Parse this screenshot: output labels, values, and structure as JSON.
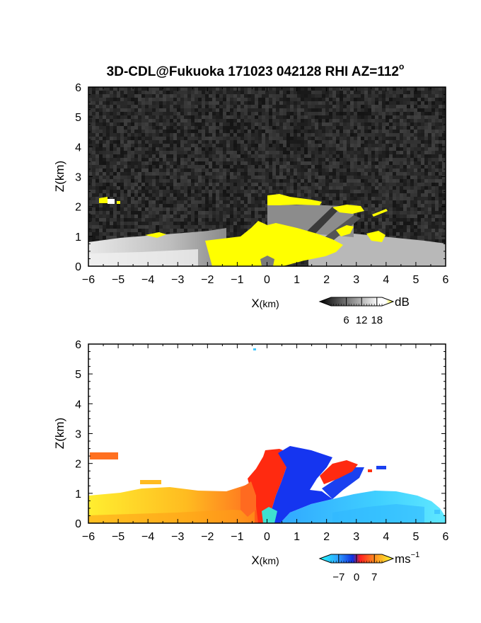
{
  "title": "3D-CDL@Fukuoka 171023 042128 RHI AZ=112",
  "title_sup": "o",
  "chart_data": [
    {
      "type": "heatmap",
      "panel": "backscatter",
      "xlabel_main": "X",
      "xlabel_unit": "(km)",
      "ylabel": "Z(km)",
      "xlim": [
        -6,
        6
      ],
      "ylim": [
        0,
        6
      ],
      "x_ticks": [
        "-6",
        "-5",
        "-4",
        "-3",
        "-2",
        "-1",
        "0",
        "1",
        "2",
        "3",
        "4",
        "5",
        "6"
      ],
      "y_ticks": [
        "0",
        "1",
        "2",
        "3",
        "4",
        "5",
        "6"
      ],
      "background": "noise (dark gray)",
      "colorbar": {
        "label": "dB",
        "ticks": [
          "6",
          "12",
          "18"
        ],
        "tick_values": [
          6,
          12,
          18
        ],
        "range": [
          0,
          20
        ],
        "colors": [
          "#000000",
          "#ffffff",
          "#ffff00"
        ]
      }
    },
    {
      "type": "heatmap",
      "panel": "doppler_velocity",
      "xlabel_main": "X",
      "xlabel_unit": "(km)",
      "ylabel": "Z(km)",
      "xlim": [
        -6,
        6
      ],
      "ylim": [
        0,
        6
      ],
      "x_ticks": [
        "-6",
        "-5",
        "-4",
        "-3",
        "-2",
        "-1",
        "0",
        "1",
        "2",
        "3",
        "4",
        "5",
        "6"
      ],
      "y_ticks": [
        "0",
        "1",
        "2",
        "3",
        "4",
        "5",
        "6"
      ],
      "colorbar": {
        "label": "ms",
        "label_sup": "−1",
        "ticks": [
          "−7",
          "0",
          "7"
        ],
        "tick_values": [
          -7,
          0,
          7
        ],
        "range": [
          -10,
          10
        ],
        "colors": [
          "#00e0e0",
          "#0040ff",
          "#ff2010",
          "#ffff40"
        ]
      }
    }
  ]
}
